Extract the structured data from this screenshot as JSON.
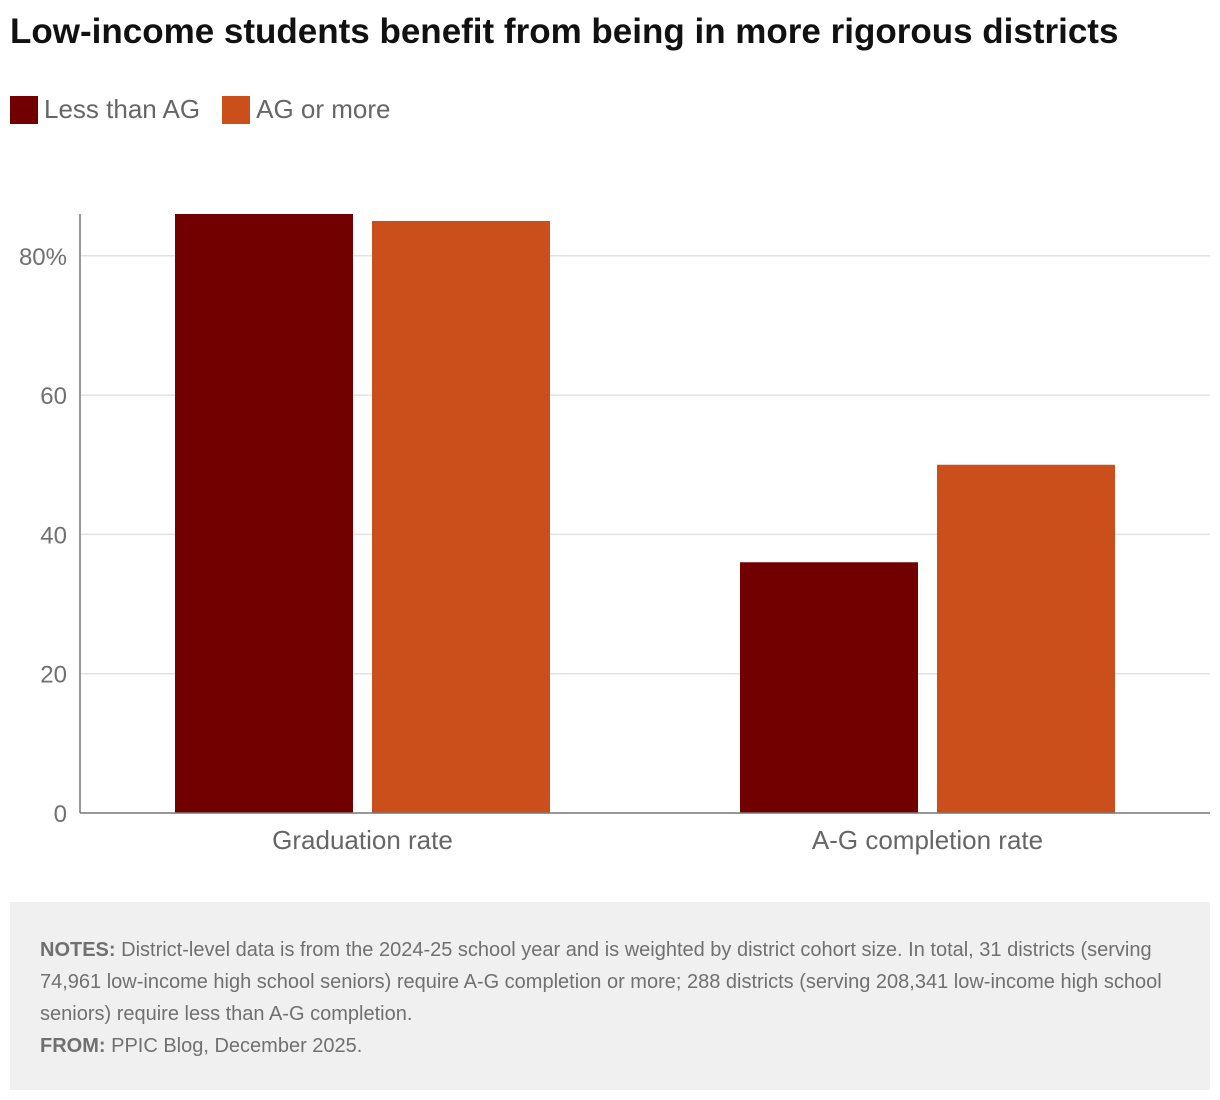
{
  "title": "Low-income students benefit from being in more rigorous districts",
  "legend": [
    {
      "label": "Less than AG",
      "color": "#720000"
    },
    {
      "label": "AG or more",
      "color": "#cb4f1b"
    }
  ],
  "chart_data": {
    "type": "bar",
    "title": "Low-income students benefit from being in more rigorous districts",
    "categories": [
      "Graduation rate",
      "A-G completion rate"
    ],
    "series": [
      {
        "name": "Less than AG",
        "color": "#720000",
        "values": [
          86,
          36
        ]
      },
      {
        "name": "AG or more",
        "color": "#cb4f1b",
        "values": [
          85,
          50
        ]
      }
    ],
    "xlabel": "",
    "ylabel": "",
    "ylim": [
      0,
      86
    ],
    "yticks": [
      0,
      20,
      40,
      60,
      80
    ],
    "ytick_labels": [
      "0",
      "20",
      "40",
      "60",
      "80%"
    ],
    "grid": true,
    "legend_position": "top-left"
  },
  "notes": {
    "notes_label": "NOTES:",
    "notes_text": "District-level data is from the 2024-25 school year and is weighted by district cohort size. In total, 31 districts (serving 74,961 low-income high school seniors) require A-G completion or more; 288 districts (serving 208,341 low-income high school seniors) require less than A-G completion.",
    "from_label": "FROM:",
    "from_text": "PPIC Blog, December 2025."
  }
}
